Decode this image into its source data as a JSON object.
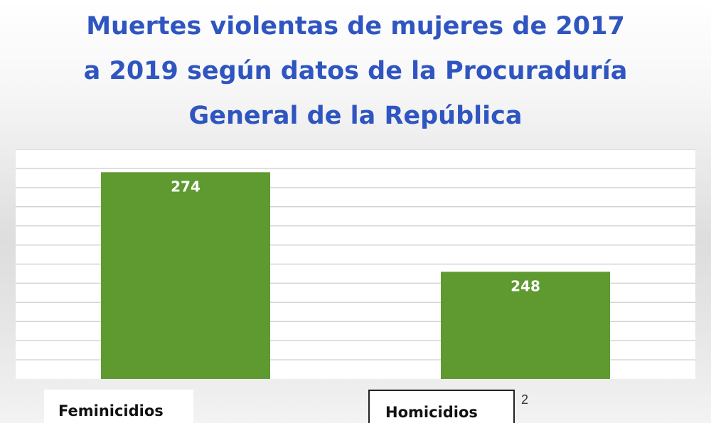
{
  "chart_data": {
    "type": "bar",
    "title_lines": [
      "Muertes violentas de mujeres de 2017",
      "a 2019 según datos de la Procuraduría",
      "General de la República"
    ],
    "categories": [
      "Feminicidios",
      "Homicidios"
    ],
    "values": [
      274,
      248
    ],
    "data_labels": [
      "274",
      "248"
    ],
    "footnote": "2",
    "ylim": [
      220,
      280
    ],
    "gridlines": true,
    "bar_color": "#5e9a2f",
    "title_color": "#2f55c1"
  }
}
